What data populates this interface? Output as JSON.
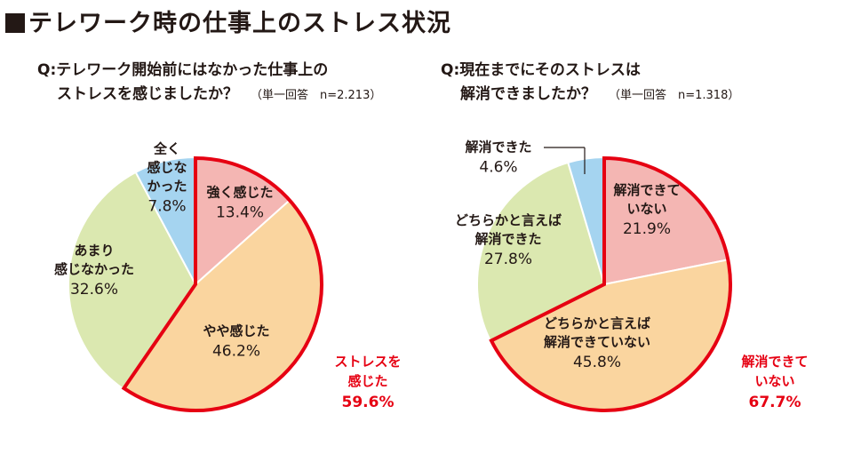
{
  "title": "テレワーク時の仕事上のストレス状況",
  "questions": [
    {
      "line1": "Q:テレワーク開始前にはなかった仕事上の",
      "line2": "ストレスを感じましたか？",
      "note": "（単一回答　n=2.213）"
    },
    {
      "line1": "Q:現在までにそのストレスは",
      "line2": "解消できましたか？",
      "note": "（単一回答　n=1.318）"
    }
  ],
  "chart_data": [
    {
      "type": "pie",
      "title": "Q:テレワーク開始前にはなかった仕事上のストレスを感じましたか？",
      "slices": [
        {
          "label": [
            "強く感じた"
          ],
          "value": 13.4,
          "pct": "13.4%",
          "color": "#f4b6b3"
        },
        {
          "label": [
            "やや感じた"
          ],
          "value": 46.2,
          "pct": "46.2%",
          "color": "#fad59f"
        },
        {
          "label": [
            "あまり",
            "感じなかった"
          ],
          "value": 32.6,
          "pct": "32.6%",
          "color": "#dbe8b0"
        },
        {
          "label": [
            "全く",
            "感じな",
            "かった"
          ],
          "value": 7.8,
          "pct": "7.8%",
          "color": "#a5d4f0"
        }
      ],
      "highlight": {
        "slices": [
          0,
          1
        ],
        "lines": [
          "ストレスを",
          "感じた"
        ],
        "pct": "59.6%",
        "color": "#e60012"
      }
    },
    {
      "type": "pie",
      "title": "Q:現在までにそのストレスは解消できましたか？",
      "slices": [
        {
          "label": [
            "解消できて",
            "いない"
          ],
          "value": 21.9,
          "pct": "21.9%",
          "color": "#f4b6b3"
        },
        {
          "label": [
            "どちらかと言えば",
            "解消できていない"
          ],
          "value": 45.8,
          "pct": "45.8%",
          "color": "#fad59f"
        },
        {
          "label": [
            "どちらかと言えば",
            "解消できた"
          ],
          "value": 27.8,
          "pct": "27.8%",
          "color": "#dbe8b0"
        },
        {
          "label": [
            "解消できた"
          ],
          "value": 4.6,
          "pct": "4.6%",
          "color": "#a5d4f0"
        }
      ],
      "highlight": {
        "slices": [
          0,
          1
        ],
        "lines": [
          "解消できて",
          "いない"
        ],
        "pct": "67.7%",
        "color": "#e60012"
      }
    }
  ]
}
